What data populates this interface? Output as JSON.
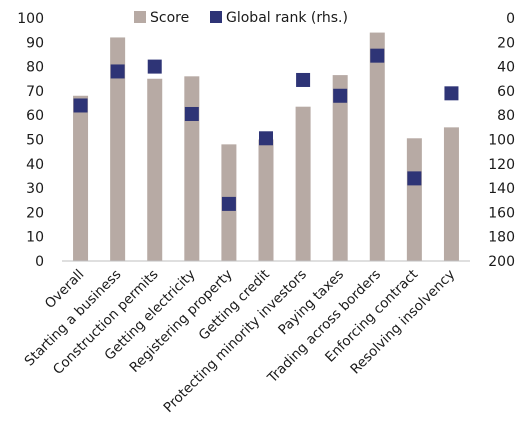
{
  "chart_data": {
    "type": "bar",
    "title": "",
    "xlabel": "",
    "ylabel": "",
    "categories": [
      "Overall",
      "Starting a business",
      "Construction permits",
      "Getting electricity",
      "Registering property",
      "Getting credit",
      "Protecting minority investors",
      "Paying taxes",
      "Trading across borders",
      "Enforcing contract",
      "Resolving insolvency"
    ],
    "series": [
      {
        "name": "Score",
        "type": "bar",
        "axis": "left",
        "color": "#b7aaa4",
        "values": [
          68,
          92,
          75,
          76,
          48,
          50,
          63.5,
          76.5,
          94,
          50.5,
          55
        ]
      },
      {
        "name": "Global rank (rhs.)",
        "type": "marker",
        "axis": "right",
        "color": "#2e3476",
        "values": [
          72,
          44,
          40,
          79,
          153,
          99,
          51,
          64,
          31,
          132,
          62
        ]
      }
    ],
    "ylim_left": [
      0,
      100
    ],
    "yticks_left": [
      "0",
      "10",
      "20",
      "30",
      "40",
      "50",
      "60",
      "70",
      "80",
      "90",
      "100"
    ],
    "ylim_right": [
      0,
      200
    ],
    "yticks_right": [
      "0",
      "20",
      "40",
      "60",
      "80",
      "100",
      "120",
      "140",
      "160",
      "180",
      "200"
    ],
    "right_axis_inverted": true,
    "grid": false,
    "legend_position": "top"
  }
}
